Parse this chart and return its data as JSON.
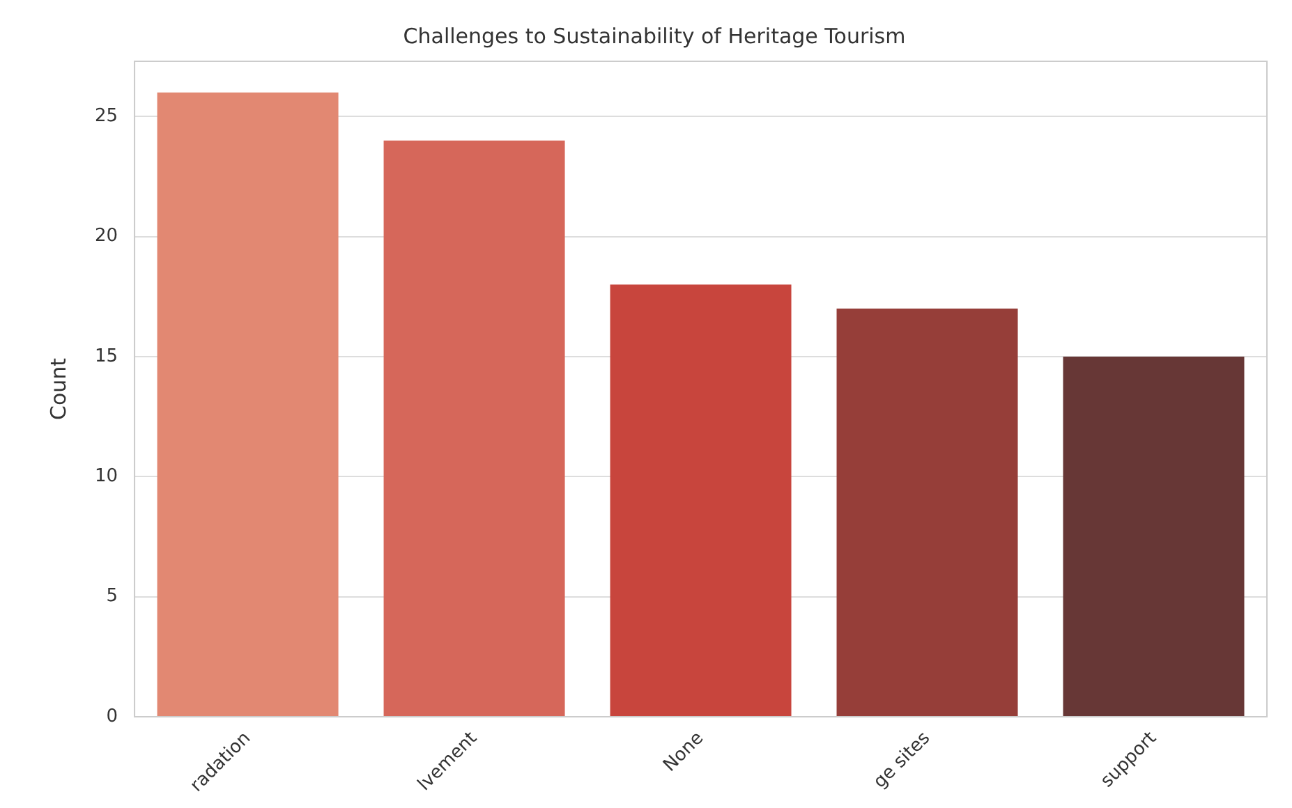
{
  "chart_data": {
    "type": "bar",
    "title": "Challenges to Sustainability of Heritage Tourism",
    "ylabel": "Count",
    "categories": [
      "radation",
      "lvement",
      "None",
      "ge sites",
      "support"
    ],
    "values": [
      26,
      24,
      18,
      17,
      15
    ],
    "colors": [
      "#e28872",
      "#d6675a",
      "#c8453d",
      "#963e39",
      "#673736"
    ],
    "ylim": [
      0,
      27.3
    ],
    "yticks": [
      0,
      5,
      10,
      15,
      20,
      25
    ],
    "grid": "y",
    "legend": false
  }
}
